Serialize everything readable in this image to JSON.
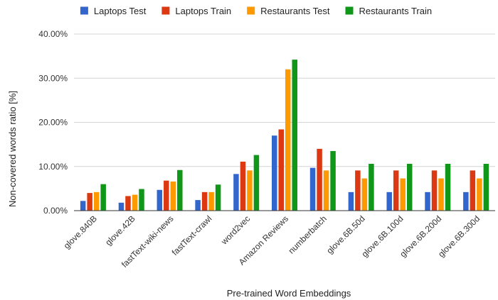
{
  "chart_data": {
    "type": "bar",
    "xlabel": "Pre-trained Word Embeddings",
    "ylabel": "Non-covered words ratio [%]",
    "ylim": [
      0,
      40
    ],
    "yticks": [
      0,
      10,
      20,
      30,
      40
    ],
    "ytick_labels": [
      "0.00%",
      "10.00%",
      "20.00%",
      "30.00%",
      "40.00%"
    ],
    "grid": true,
    "legend_position": "top",
    "categories": [
      "glove.840B",
      "glove.42B",
      "fastText-wiki-news",
      "fastText-crawl",
      "word2vec",
      "Amazon Reviews",
      "numberbatch",
      "glove.6B.50d",
      "glove.6B.100d",
      "glove.6B.200d",
      "glove.6B.300d"
    ],
    "series": [
      {
        "name": "Laptops Test",
        "color": "#3366cc",
        "values": [
          2.2,
          1.8,
          4.7,
          2.4,
          8.3,
          17.0,
          9.7,
          4.2,
          4.2,
          4.2,
          4.2
        ]
      },
      {
        "name": "Laptops Train",
        "color": "#dc3912",
        "values": [
          4.0,
          3.3,
          6.8,
          4.2,
          11.1,
          18.4,
          14.0,
          9.1,
          9.1,
          9.1,
          9.1
        ]
      },
      {
        "name": "Restaurants Test",
        "color": "#ff9900",
        "values": [
          4.2,
          3.6,
          6.6,
          4.2,
          9.1,
          32.0,
          9.1,
          7.3,
          7.3,
          7.3,
          7.3
        ]
      },
      {
        "name": "Restaurants Train",
        "color": "#109618",
        "values": [
          6.0,
          4.9,
          9.2,
          5.9,
          12.6,
          34.2,
          13.5,
          10.6,
          10.6,
          10.6,
          10.6
        ]
      }
    ]
  }
}
